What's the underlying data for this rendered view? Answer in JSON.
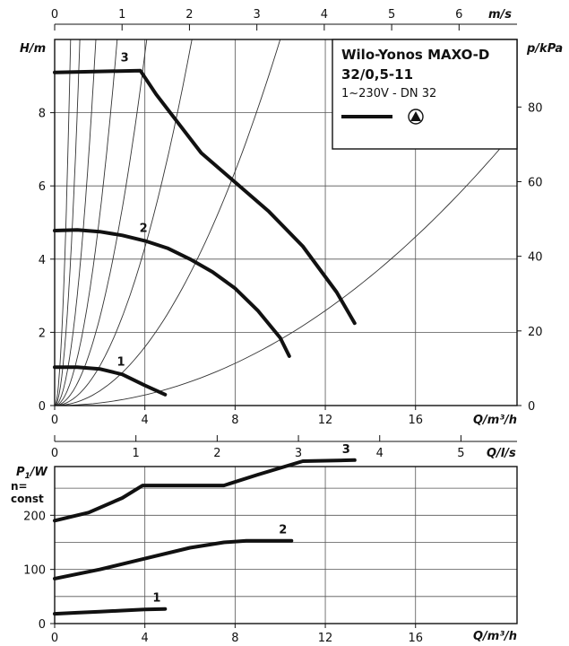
{
  "header": {
    "title_line1": "Wilo-Yonos MAXO-D",
    "title_line2": "32/0,5-11",
    "subtitle": "1~230V - DN 32"
  },
  "chart_data": [
    {
      "type": "line",
      "name": "head",
      "x_axis": {
        "label": "Q/m³/h",
        "range": [
          0,
          20.5
        ],
        "ticks": [
          0,
          4,
          8,
          12,
          16
        ]
      },
      "y_axis": {
        "label": "H/m",
        "range": [
          0,
          10
        ],
        "ticks": [
          0,
          2,
          4,
          6,
          8
        ]
      },
      "top_axis": {
        "label": "m/s",
        "range": [
          0,
          6.86
        ],
        "ticks": [
          0,
          1,
          2,
          3,
          4,
          5,
          6
        ]
      },
      "right_axis": {
        "label": "p/kPa",
        "range": [
          0,
          98.1
        ],
        "ticks": [
          0,
          20,
          40,
          60,
          80
        ]
      },
      "series": [
        {
          "name": "1",
          "points": [
            [
              0,
              1.05
            ],
            [
              1,
              1.05
            ],
            [
              2,
              1.0
            ],
            [
              3,
              0.85
            ],
            [
              4,
              0.55
            ],
            [
              4.9,
              0.3
            ]
          ]
        },
        {
          "name": "2",
          "points": [
            [
              0,
              4.78
            ],
            [
              1,
              4.8
            ],
            [
              2,
              4.75
            ],
            [
              3,
              4.65
            ],
            [
              4,
              4.5
            ],
            [
              5,
              4.3
            ],
            [
              6,
              4.0
            ],
            [
              7,
              3.65
            ],
            [
              8,
              3.2
            ],
            [
              9,
              2.6
            ],
            [
              10,
              1.85
            ],
            [
              10.4,
              1.35
            ]
          ]
        },
        {
          "name": "3",
          "points": [
            [
              0,
              9.1
            ],
            [
              3.8,
              9.15
            ],
            [
              4.5,
              8.5
            ],
            [
              5.5,
              7.7
            ],
            [
              6.5,
              6.9
            ],
            [
              8,
              6.1
            ],
            [
              9.5,
              5.3
            ],
            [
              11,
              4.35
            ],
            [
              12.5,
              3.1
            ],
            [
              13.3,
              2.25
            ]
          ]
        }
      ],
      "system_curves_k": [
        20,
        8,
        3,
        1.3,
        0.6,
        0.27,
        0.1,
        0.018
      ],
      "grid": true
    },
    {
      "type": "line",
      "name": "power",
      "x_axis": {
        "label": "Q/m³/h",
        "range": [
          0,
          20.5
        ],
        "ticks": [
          0,
          4,
          8,
          12,
          16
        ]
      },
      "y_axis": {
        "label": "P1/W",
        "note": "n= const",
        "range": [
          0,
          290
        ],
        "ticks": [
          0,
          100,
          200
        ]
      },
      "top_axis": {
        "label": "Q/l/s",
        "range": [
          0,
          5.69
        ],
        "ticks": [
          0,
          1,
          2,
          3,
          4,
          5
        ]
      },
      "series": [
        {
          "name": "1",
          "points": [
            [
              0,
              18
            ],
            [
              1,
              20
            ],
            [
              2,
              22
            ],
            [
              3,
              24
            ],
            [
              4,
              26
            ],
            [
              4.9,
              27
            ]
          ]
        },
        {
          "name": "2",
          "points": [
            [
              0,
              83
            ],
            [
              2,
              100
            ],
            [
              4,
              120
            ],
            [
              6,
              140
            ],
            [
              7.5,
              150
            ],
            [
              8.5,
              153
            ],
            [
              10.5,
              153
            ]
          ]
        },
        {
          "name": "3",
          "points": [
            [
              0,
              190
            ],
            [
              1.5,
              205
            ],
            [
              3,
              232
            ],
            [
              3.9,
              255
            ],
            [
              7.5,
              255
            ],
            [
              9,
              275
            ],
            [
              11,
              300
            ],
            [
              13.3,
              302
            ]
          ]
        }
      ],
      "grid": true
    }
  ]
}
